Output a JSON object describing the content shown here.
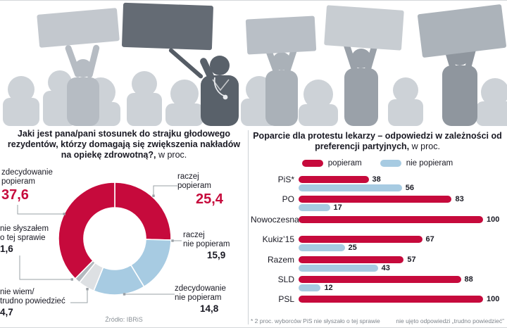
{
  "colors": {
    "popieram": "#c60a3c",
    "nie_popieram": "#a7cbe2",
    "neutral_light": "#dde0e3",
    "neutral_dark": "#b3b9bf"
  },
  "left_panel": {
    "title_bold": "Jaki jest pana/pani stosunek do strajku głodowego rezydentów, którzy domagają się zwiększenia nakładów na opiekę zdrowotną?,",
    "title_normal": " w proc.",
    "source": "Źródło: IBRiS",
    "labels": [
      {
        "text": "zdecydowanie\npopieram",
        "value": "37,6"
      },
      {
        "text": "raczej\npopieram",
        "value": "25,4"
      },
      {
        "text": "nie słyszałem\no tej sprawie",
        "value": "1,6"
      },
      {
        "text": "raczej\nnie popieram",
        "value": "15,9"
      },
      {
        "text": "nie wiem/\ntrudno powiedzieć",
        "value": "4,7"
      },
      {
        "text": "zdecydowanie\nnie popieram",
        "value": "14,8"
      }
    ]
  },
  "right_panel": {
    "title_bold": "Poparcie dla protestu lekarzy – odpowiedzi w zależności od preferencji partyjnych,",
    "title_normal": " w proc.",
    "legend": [
      {
        "label": "popieram",
        "color": "#c60a3c"
      },
      {
        "label": "nie popieram",
        "color": "#a7cbe2"
      }
    ],
    "footnote_left": "* 2 proc. wyborców PiS nie słyszało o tej sprawie",
    "footnote_right": "nie ujęto odpowiedzi „trudno powiedzieć”"
  },
  "chart_data": [
    {
      "type": "pie",
      "subtype": "donut",
      "title": "Jaki jest pana/pani stosunek do strajku głodowego rezydentów, którzy domagają się zwiększenia nakładów na opiekę zdrowotną?, w proc.",
      "slices": [
        {
          "label": "raczej popieram",
          "value": 25.4,
          "color": "#c60a3c"
        },
        {
          "label": "raczej nie popieram",
          "value": 15.9,
          "color": "#a7cbe2"
        },
        {
          "label": "zdecydowanie nie popieram",
          "value": 14.8,
          "color": "#a7cbe2"
        },
        {
          "label": "nie wiem/trudno powiedzieć",
          "value": 4.7,
          "color": "#dde0e3"
        },
        {
          "label": "nie słyszałem o tej sprawie",
          "value": 1.6,
          "color": "#b3b9bf"
        },
        {
          "label": "zdecydowanie popieram",
          "value": 37.6,
          "color": "#c60a3c"
        }
      ],
      "source": "Źródło: IBRiS"
    },
    {
      "type": "bar",
      "orientation": "horizontal",
      "title": "Poparcie dla protestu lekarzy – odpowiedzi w zależności od preferencji partyjnych, w proc.",
      "categories": [
        "PiS*",
        "PO",
        "Nowoczesna",
        "Kukiz’15",
        "Razem",
        "SLD",
        "PSL"
      ],
      "series": [
        {
          "name": "popieram",
          "color": "#c60a3c",
          "values": [
            38,
            83,
            100,
            67,
            57,
            88,
            100
          ]
        },
        {
          "name": "nie popieram",
          "color": "#a7cbe2",
          "values": [
            56,
            17,
            null,
            25,
            43,
            12,
            null
          ]
        }
      ],
      "xlim": [
        0,
        100
      ],
      "legend_position": "top"
    }
  ]
}
